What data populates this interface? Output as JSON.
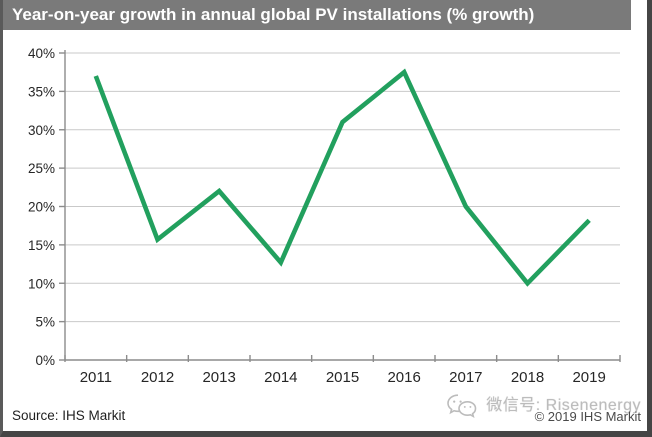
{
  "header": {
    "title": "Year-on-year growth in annual global PV installations (% growth)",
    "background_color": "#7a7a7a",
    "text_color": "#ffffff"
  },
  "chart_data": {
    "type": "line",
    "title": "Year-on-year growth in annual global PV installations (% growth)",
    "categories": [
      "2011",
      "2012",
      "2013",
      "2014",
      "2015",
      "2016",
      "2017",
      "2018",
      "2019"
    ],
    "values": [
      37,
      15.7,
      22,
      12.7,
      31,
      37.5,
      20,
      10,
      18.2
    ],
    "xlabel": "",
    "ylabel": "",
    "ylim": [
      0,
      40
    ],
    "ytick_step": 5,
    "ytick_format": "percent",
    "ytick_labels": [
      "0%",
      "5%",
      "10%",
      "15%",
      "20%",
      "25%",
      "30%",
      "35%",
      "40%"
    ],
    "grid": true,
    "legend_position": "none",
    "line_color": "#22a05e",
    "grid_color": "#c9c9c9",
    "axis_color": "#8c8c8c",
    "tick_label_color": "#262626"
  },
  "footer": {
    "source": "Source: IHS Markit",
    "copyright": "© 2019 IHS Markit"
  },
  "watermark": {
    "icon": "wechat-icon",
    "text": "微信号: Risenenergy"
  }
}
